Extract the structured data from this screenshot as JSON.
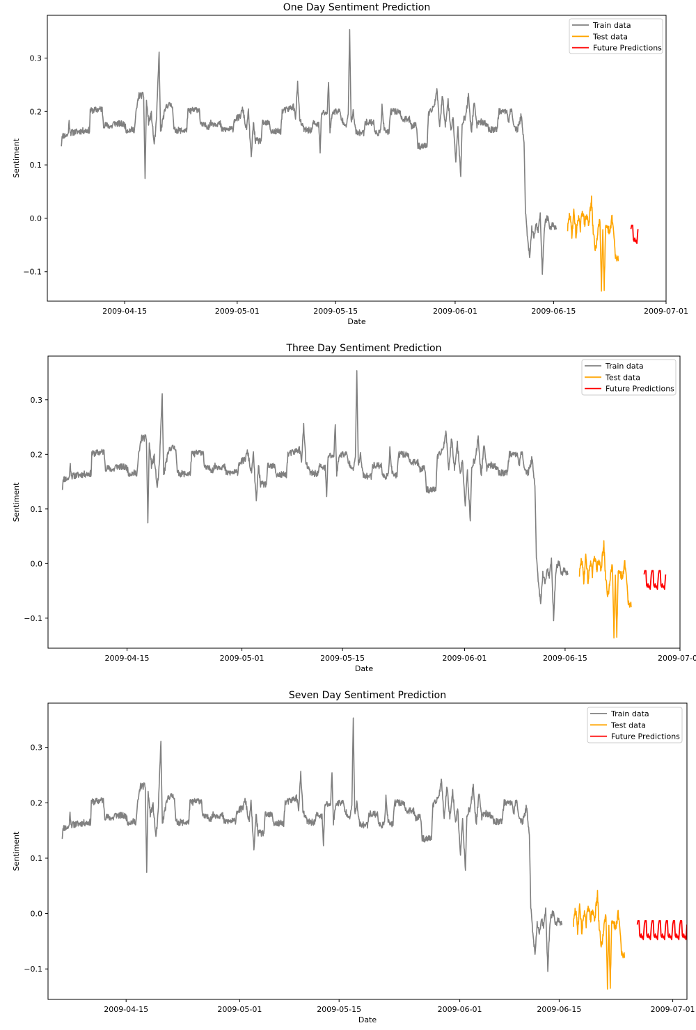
{
  "legend_labels": {
    "train": "Train data",
    "test": "Test data",
    "future": "Future Predictions"
  },
  "colors": {
    "train": "#808080",
    "test": "#FFA500",
    "future": "#FF0000",
    "axis": "#000000"
  },
  "chart_data": [
    {
      "type": "line",
      "title": "One Day Sentiment Prediction",
      "xlabel": "Date",
      "ylabel": "Sentiment",
      "x_range": [
        "2009-04-04",
        "2009-07-01"
      ],
      "ylim": [
        -0.155,
        0.38
      ],
      "x_ticks": [
        "2009-04-15",
        "2009-05-01",
        "2009-05-15",
        "2009-06-01",
        "2009-06-15",
        "2009-07-01"
      ],
      "y_ticks": [
        -0.1,
        0.0,
        0.1,
        0.2,
        0.3
      ],
      "y_tick_labels": [
        "−0.1",
        "0.0",
        "0.1",
        "0.2",
        "0.3"
      ],
      "legend": [
        "Train data",
        "Test data",
        "Future Predictions"
      ],
      "legend_position": "top-right",
      "future_days": 1
    },
    {
      "type": "line",
      "title": "Three Day Sentiment Prediction",
      "xlabel": "Date",
      "ylabel": "Sentiment",
      "x_range": [
        "2009-04-04",
        "2009-07-01"
      ],
      "ylim": [
        -0.155,
        0.38
      ],
      "x_ticks": [
        "2009-04-15",
        "2009-05-01",
        "2009-05-15",
        "2009-06-01",
        "2009-06-15",
        "2009-07-01"
      ],
      "y_ticks": [
        -0.1,
        0.0,
        0.1,
        0.2,
        0.3
      ],
      "y_tick_labels": [
        "−0.1",
        "0.0",
        "0.1",
        "0.2",
        "0.3"
      ],
      "legend": [
        "Train data",
        "Test data",
        "Future Predictions"
      ],
      "legend_position": "top-right",
      "future_days": 3
    },
    {
      "type": "line",
      "title": "Seven Day Sentiment Prediction",
      "xlabel": "Date",
      "ylabel": "Sentiment",
      "x_range": [
        "2009-04-04",
        "2009-07-03"
      ],
      "ylim": [
        -0.155,
        0.38
      ],
      "x_ticks": [
        "2009-04-15",
        "2009-05-01",
        "2009-05-15",
        "2009-06-01",
        "2009-06-15",
        "2009-07-01"
      ],
      "y_ticks": [
        -0.1,
        0.0,
        0.1,
        0.2,
        0.3
      ],
      "y_tick_labels": [
        "−0.1",
        "0.0",
        "0.1",
        "0.2",
        "0.3"
      ],
      "legend": [
        "Train data",
        "Test data",
        "Future Predictions"
      ],
      "legend_position": "top-right",
      "future_days": 7
    }
  ],
  "series": {
    "train": {
      "name": "Train data",
      "start": "2009-04-06",
      "end": "2009-06-17",
      "anchors": [
        [
          0.0,
          0.138
        ],
        [
          0.1,
          0.155
        ],
        [
          0.9,
          0.155
        ],
        [
          1.0,
          0.165
        ],
        [
          1.1,
          0.18
        ],
        [
          1.3,
          0.16
        ],
        [
          2.6,
          0.163
        ],
        [
          4.0,
          0.165
        ],
        [
          4.1,
          0.201
        ],
        [
          5.8,
          0.205
        ],
        [
          6.0,
          0.175
        ],
        [
          7.2,
          0.172
        ],
        [
          7.4,
          0.178
        ],
        [
          9.0,
          0.176
        ],
        [
          9.2,
          0.165
        ],
        [
          10.4,
          0.166
        ],
        [
          10.6,
          0.196
        ],
        [
          11.0,
          0.23
        ],
        [
          11.7,
          0.23
        ],
        [
          11.9,
          0.076
        ],
        [
          12.1,
          0.22
        ],
        [
          12.4,
          0.18
        ],
        [
          12.8,
          0.195
        ],
        [
          13.2,
          0.138
        ],
        [
          13.5,
          0.178
        ],
        [
          13.9,
          0.31
        ],
        [
          14.1,
          0.16
        ],
        [
          14.5,
          0.19
        ],
        [
          15.0,
          0.212
        ],
        [
          15.8,
          0.212
        ],
        [
          16.0,
          0.165
        ],
        [
          17.8,
          0.164
        ],
        [
          18.0,
          0.2
        ],
        [
          19.6,
          0.205
        ],
        [
          19.8,
          0.175
        ],
        [
          21.0,
          0.172
        ],
        [
          21.2,
          0.178
        ],
        [
          22.6,
          0.177
        ],
        [
          22.8,
          0.166
        ],
        [
          24.4,
          0.167
        ],
        [
          24.6,
          0.185
        ],
        [
          25.4,
          0.19
        ],
        [
          25.8,
          0.205
        ],
        [
          26.3,
          0.165
        ],
        [
          26.6,
          0.2
        ],
        [
          27.0,
          0.113
        ],
        [
          27.3,
          0.18
        ],
        [
          27.6,
          0.145
        ],
        [
          28.4,
          0.145
        ],
        [
          28.6,
          0.178
        ],
        [
          29.6,
          0.178
        ],
        [
          29.8,
          0.162
        ],
        [
          31.2,
          0.163
        ],
        [
          31.4,
          0.2
        ],
        [
          32.4,
          0.205
        ],
        [
          33.0,
          0.21
        ],
        [
          33.3,
          0.19
        ],
        [
          33.6,
          0.252
        ],
        [
          33.9,
          0.185
        ],
        [
          34.2,
          0.175
        ],
        [
          34.6,
          0.165
        ],
        [
          35.6,
          0.165
        ],
        [
          35.8,
          0.178
        ],
        [
          36.6,
          0.175
        ],
        [
          36.8,
          0.122
        ],
        [
          37.0,
          0.198
        ],
        [
          37.8,
          0.197
        ],
        [
          38.0,
          0.255
        ],
        [
          38.2,
          0.165
        ],
        [
          38.6,
          0.2
        ],
        [
          39.6,
          0.2
        ],
        [
          39.8,
          0.185
        ],
        [
          40.6,
          0.175
        ],
        [
          40.8,
          0.195
        ],
        [
          41.0,
          0.354
        ],
        [
          41.2,
          0.18
        ],
        [
          41.5,
          0.198
        ],
        [
          41.9,
          0.16
        ],
        [
          43.0,
          0.16
        ],
        [
          43.2,
          0.18
        ],
        [
          44.4,
          0.18
        ],
        [
          44.6,
          0.16
        ],
        [
          45.4,
          0.16
        ],
        [
          45.6,
          0.215
        ],
        [
          45.9,
          0.165
        ],
        [
          46.6,
          0.16
        ],
        [
          46.8,
          0.2
        ],
        [
          48.2,
          0.2
        ],
        [
          48.4,
          0.185
        ],
        [
          49.6,
          0.185
        ],
        [
          49.8,
          0.173
        ],
        [
          50.5,
          0.175
        ],
        [
          50.7,
          0.135
        ],
        [
          52.0,
          0.135
        ],
        [
          52.2,
          0.193
        ],
        [
          53.0,
          0.21
        ],
        [
          53.4,
          0.24
        ],
        [
          53.8,
          0.175
        ],
        [
          54.2,
          0.23
        ],
        [
          54.6,
          0.175
        ],
        [
          55.0,
          0.22
        ],
        [
          55.4,
          0.165
        ],
        [
          55.7,
          0.19
        ],
        [
          56.1,
          0.105
        ],
        [
          56.4,
          0.17
        ],
        [
          56.8,
          0.074
        ],
        [
          57.0,
          0.18
        ],
        [
          57.5,
          0.19
        ],
        [
          57.9,
          0.232
        ],
        [
          58.3,
          0.16
        ],
        [
          58.7,
          0.215
        ],
        [
          59.1,
          0.175
        ],
        [
          59.4,
          0.182
        ],
        [
          60.6,
          0.175
        ],
        [
          60.8,
          0.165
        ],
        [
          62.0,
          0.168
        ],
        [
          62.2,
          0.2
        ],
        [
          63.4,
          0.2
        ],
        [
          63.6,
          0.182
        ],
        [
          64.0,
          0.208
        ],
        [
          64.3,
          0.175
        ],
        [
          64.8,
          0.165
        ],
        [
          65.1,
          0.175
        ],
        [
          65.4,
          0.195
        ],
        [
          65.8,
          0.14
        ],
        [
          66.0,
          0.012
        ],
        [
          66.2,
          -0.02
        ],
        [
          66.6,
          -0.076
        ],
        [
          66.9,
          -0.02
        ],
        [
          67.2,
          -0.035
        ],
        [
          67.5,
          -0.01
        ],
        [
          67.8,
          -0.025
        ],
        [
          68.1,
          0.005
        ],
        [
          68.4,
          -0.1
        ],
        [
          68.7,
          -0.015
        ],
        [
          69.1,
          0.005
        ],
        [
          69.5,
          -0.02
        ],
        [
          69.9,
          -0.01
        ],
        [
          70.4,
          -0.02
        ]
      ]
    },
    "test": {
      "name": "Test data",
      "start": "2009-06-17",
      "end": "2009-06-26",
      "anchors": [
        [
          0.0,
          -0.02
        ],
        [
          0.3,
          0.01
        ],
        [
          0.6,
          -0.03
        ],
        [
          0.9,
          0.015
        ],
        [
          1.2,
          -0.035
        ],
        [
          1.5,
          0.005
        ],
        [
          1.8,
          -0.02
        ],
        [
          2.1,
          0.018
        ],
        [
          2.4,
          -0.01
        ],
        [
          2.7,
          0.005
        ],
        [
          3.0,
          -0.01
        ],
        [
          3.4,
          0.035
        ],
        [
          3.6,
          -0.02
        ],
        [
          3.9,
          -0.055
        ],
        [
          4.1,
          -0.055
        ],
        [
          4.3,
          -0.02
        ],
        [
          4.6,
          0.0
        ],
        [
          4.8,
          -0.13
        ],
        [
          5.0,
          -0.02
        ],
        [
          5.2,
          -0.132
        ],
        [
          5.4,
          -0.02
        ],
        [
          5.8,
          -0.02
        ],
        [
          6.0,
          -0.03
        ],
        [
          6.3,
          0.005
        ],
        [
          6.6,
          -0.035
        ],
        [
          6.8,
          -0.075
        ],
        [
          7.2,
          -0.075
        ]
      ]
    },
    "future": {
      "name": "Future Predictions",
      "cycle": [
        [
          0.0,
          -0.02
        ],
        [
          0.1,
          -0.013
        ],
        [
          0.25,
          -0.013
        ],
        [
          0.35,
          -0.04
        ],
        [
          0.45,
          -0.043
        ],
        [
          0.55,
          -0.037
        ],
        [
          0.65,
          -0.044
        ],
        [
          0.75,
          -0.041
        ],
        [
          0.85,
          -0.047
        ],
        [
          1.0,
          -0.02
        ]
      ]
    }
  }
}
